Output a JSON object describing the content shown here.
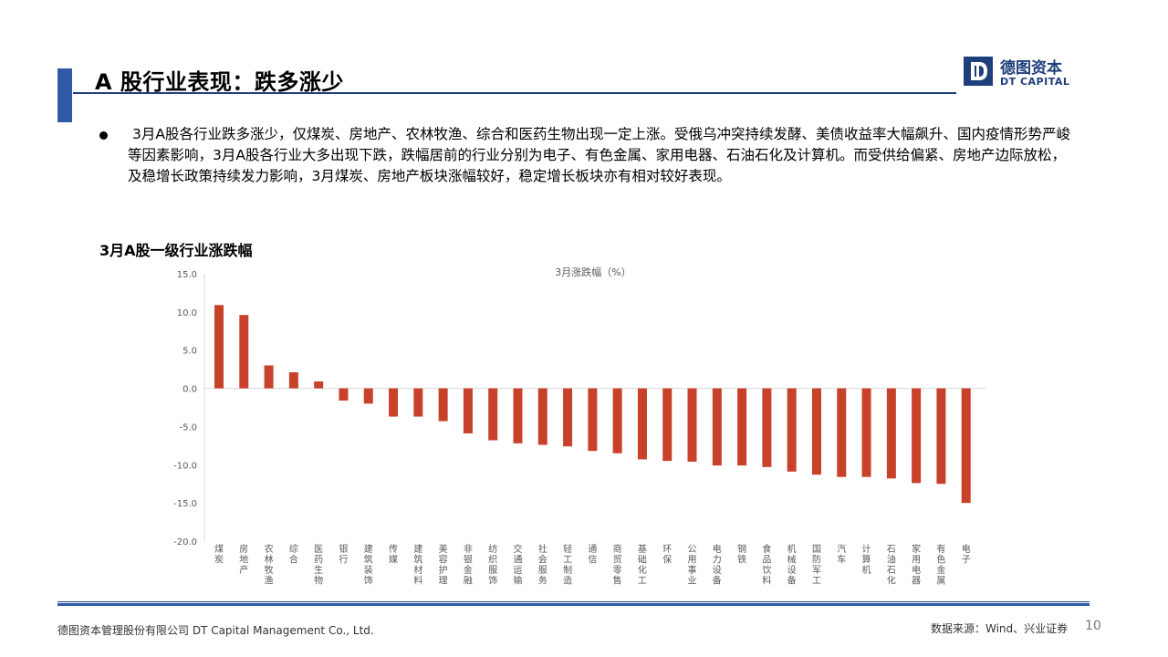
{
  "header": {
    "title": "A 股行业表现：跌多涨少",
    "logo_cn": "德图资本",
    "logo_en": "DT CAPITAL"
  },
  "bullet": {
    "text": "3月A股各行业跌多涨少，仅煤炭、房地产、农林牧渔、综合和医药生物出现一定上涨。受俄乌冲突持续发酵、美债收益率大幅飙升、国内疫情形势严峻等因素影响，3月A股各行业大多出现下跌，跌幅居前的行业分别为电子、有色金属、家用电器、石油石化及计算机。而受供给偏紧、房地产边际放松，及稳增长政策持续发力影响，3月煤炭、房地产板块涨幅较好，稳定增长板块亦有相对较好表现。"
  },
  "chart_heading": "3月A股一级行业涨跌幅",
  "chart_data": {
    "type": "bar",
    "title": "3月涨跌幅（%）",
    "categories": [
      "煤炭",
      "房地产",
      "农林牧渔",
      "综合",
      "医药生物",
      "银行",
      "建筑装饰",
      "传媒",
      "建筑材料",
      "美容护理",
      "非银金融",
      "纺织服饰",
      "交通运输",
      "社会服务",
      "轻工制造",
      "通信",
      "商贸零售",
      "基础化工",
      "环保",
      "公用事业",
      "电力设备",
      "钢铁",
      "食品饮料",
      "机械设备",
      "国防军工",
      "汽车",
      "计算机",
      "石油石化",
      "家用电器",
      "有色金属",
      "电子"
    ],
    "values": [
      10.9,
      9.6,
      3.0,
      2.1,
      0.9,
      -1.6,
      -2.0,
      -3.7,
      -3.7,
      -4.3,
      -5.9,
      -6.8,
      -7.2,
      -7.4,
      -7.6,
      -8.2,
      -8.5,
      -9.3,
      -9.5,
      -9.6,
      -10.1,
      -10.1,
      -10.3,
      -10.9,
      -11.3,
      -11.6,
      -11.6,
      -11.8,
      -12.4,
      -12.5,
      -15.0
    ],
    "ylim": [
      -20,
      15
    ],
    "yticks": [
      "15.0",
      "10.0",
      "5.0",
      "0.0",
      "-5.0",
      "-10.0",
      "-15.0",
      "-20.0"
    ],
    "ytick_values": [
      15,
      10,
      5,
      0,
      -5,
      -10,
      -15,
      -20
    ],
    "bar_color": "#c8412a",
    "grid": false,
    "legend": "none"
  },
  "footer": {
    "company": "德图资本管理股份有限公司 DT Capital Management Co., Ltd.",
    "source": "数据来源：Wind、兴业证券",
    "page": "10"
  },
  "colors": {
    "accent": "#2e5aa8",
    "navy": "#1f3f7a",
    "bar": "#c8412a"
  }
}
